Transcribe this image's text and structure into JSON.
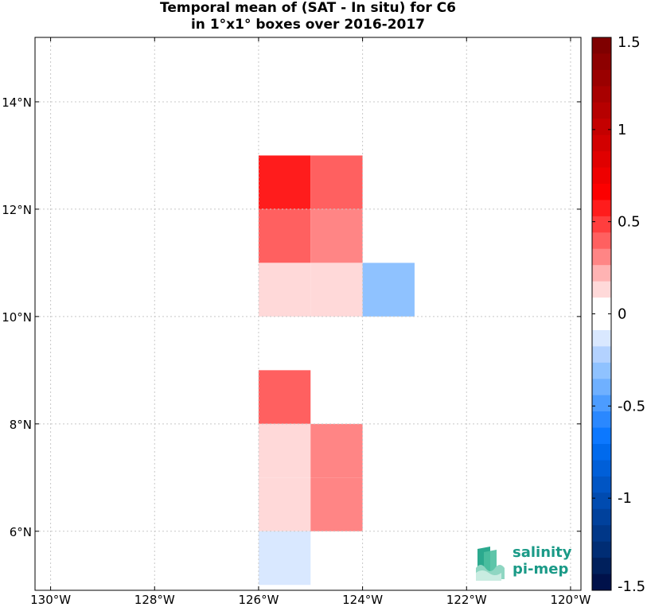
{
  "title": {
    "line1": "Temporal mean of (SAT - In situ) for C6",
    "line2": "in 1°x1° boxes over 2016-2017"
  },
  "chart_data": {
    "type": "heatmap",
    "x_range": [
      -130.3,
      -119.8
    ],
    "y_range": [
      4.9,
      15.2
    ],
    "x_ticks": [
      {
        "value": -130,
        "label": "130°W"
      },
      {
        "value": -128,
        "label": "128°W"
      },
      {
        "value": -126,
        "label": "126°W"
      },
      {
        "value": -124,
        "label": "124°W"
      },
      {
        "value": -122,
        "label": "122°W"
      },
      {
        "value": -120,
        "label": "120°W"
      }
    ],
    "y_ticks": [
      {
        "value": 6,
        "label": "6°N"
      },
      {
        "value": 8,
        "label": "8°N"
      },
      {
        "value": 10,
        "label": "10°N"
      },
      {
        "value": 12,
        "label": "12°N"
      },
      {
        "value": 14,
        "label": "14°N"
      }
    ],
    "grid": true,
    "cells": [
      {
        "lon_min": -126,
        "lat_min": 12,
        "value": 0.6
      },
      {
        "lon_min": -125,
        "lat_min": 12,
        "value": 0.4
      },
      {
        "lon_min": -126,
        "lat_min": 11,
        "value": 0.4
      },
      {
        "lon_min": -125,
        "lat_min": 11,
        "value": 0.3
      },
      {
        "lon_min": -126,
        "lat_min": 10,
        "value": 0.15
      },
      {
        "lon_min": -125,
        "lat_min": 10,
        "value": 0.15
      },
      {
        "lon_min": -124,
        "lat_min": 10,
        "value": -0.35
      },
      {
        "lon_min": -126,
        "lat_min": 8,
        "value": 0.4
      },
      {
        "lon_min": -126,
        "lat_min": 7,
        "value": 0.15
      },
      {
        "lon_min": -125,
        "lat_min": 7,
        "value": 0.3
      },
      {
        "lon_min": -126,
        "lat_min": 6,
        "value": 0.15
      },
      {
        "lon_min": -125,
        "lat_min": 6,
        "value": 0.3
      },
      {
        "lon_min": -126,
        "lat_min": 5,
        "value": -0.15
      }
    ],
    "colorbar": {
      "range": [
        -1.5,
        1.5
      ],
      "ticks": [
        {
          "value": 1.5,
          "label": "1.5"
        },
        {
          "value": 1,
          "label": "1"
        },
        {
          "value": 0.5,
          "label": "0.5"
        },
        {
          "value": 0,
          "label": "0"
        },
        {
          "value": -0.5,
          "label": "-0.5"
        },
        {
          "value": -1,
          "label": "-1"
        },
        {
          "value": -1.5,
          "label": "-1.5"
        }
      ],
      "colors_top_to_bottom": [
        "#7f0000",
        "#8d0000",
        "#9a0000",
        "#a80000",
        "#b60000",
        "#c40000",
        "#d20000",
        "#e00000",
        "#ee0000",
        "#fc0000",
        "#ff1c1c",
        "#ff3e3e",
        "#ff6060",
        "#ff8585",
        "#ffb3b3",
        "#ffd9d9",
        "#ffffff",
        "#ffffff",
        "#d9e8ff",
        "#b3d2ff",
        "#8fc2ff",
        "#6fb0ff",
        "#4c9cff",
        "#2a88ff",
        "#0c78ff",
        "#006aed",
        "#005fd8",
        "#0055c4",
        "#004bb0",
        "#00419c",
        "#003788",
        "#002d74",
        "#00205c",
        "#00114a"
      ]
    }
  },
  "logo": {
    "line1": "salinity",
    "line2": "pi-mep"
  }
}
